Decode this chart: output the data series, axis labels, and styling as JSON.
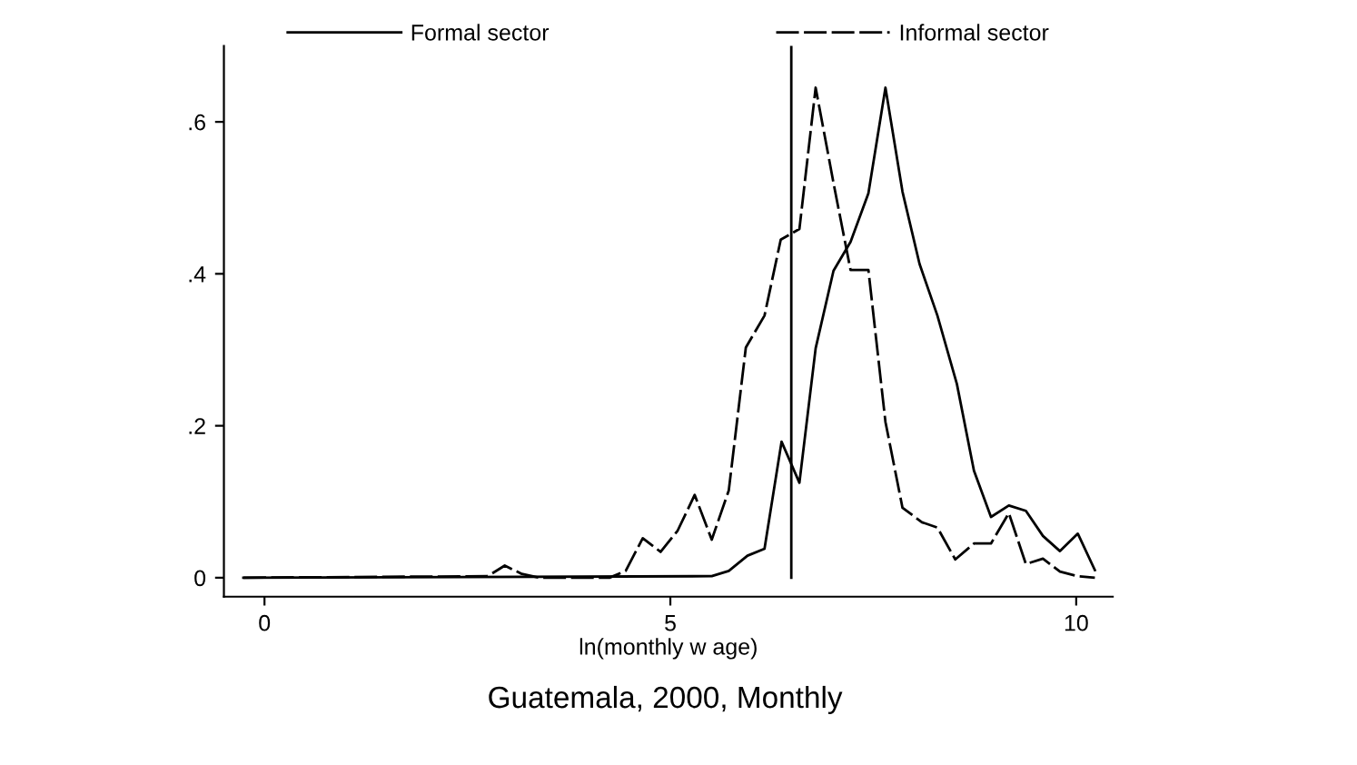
{
  "chart_data": {
    "type": "line",
    "title": "Guatemala, 2000, Monthly",
    "xlabel": "ln(monthly w age)",
    "series": [
      {
        "name": "Formal sector",
        "color": "#000000",
        "line_style": "solid",
        "x": [
          -0.26,
          5.51,
          5.72,
          5.95,
          6.16,
          6.37,
          6.59,
          6.79,
          7.01,
          7.22,
          7.44,
          7.65,
          7.86,
          8.07,
          8.29,
          8.53,
          8.74,
          8.95,
          9.17,
          9.38,
          9.59,
          9.8,
          10.02,
          10.23
        ],
        "values": [
          0,
          0.002,
          0.009,
          0.029,
          0.038,
          0.179,
          0.125,
          0.302,
          0.404,
          0.442,
          0.506,
          0.645,
          0.508,
          0.413,
          0.345,
          0.255,
          0.141,
          0.08,
          0.095,
          0.088,
          0.055,
          0.035,
          0.058,
          0.01
        ]
      },
      {
        "name": "Informal sector",
        "color": "#000000",
        "line_style": "dashed",
        "x": [
          -0.26,
          2.75,
          2.96,
          3.17,
          3.38,
          4.25,
          4.45,
          4.66,
          4.88,
          5.09,
          5.3,
          5.51,
          5.72,
          5.93,
          6.16,
          6.36,
          6.59,
          6.79,
          7.02,
          7.22,
          7.44,
          7.65,
          7.86,
          8.1,
          8.29,
          8.51,
          8.74,
          8.95,
          9.17,
          9.38,
          9.59,
          9.8,
          10.02,
          10.23
        ],
        "values": [
          0,
          0.002,
          0.016,
          0.005,
          0,
          0,
          0.009,
          0.052,
          0.034,
          0.062,
          0.109,
          0.05,
          0.115,
          0.303,
          0.345,
          0.445,
          0.459,
          0.645,
          0.514,
          0.405,
          0.405,
          0.205,
          0.092,
          0.073,
          0.066,
          0.024,
          0.045,
          0.045,
          0.085,
          0.018,
          0.025,
          0.008,
          0.002,
          0
        ]
      }
    ],
    "ref_lines": [
      {
        "axis": "x",
        "value": 6.49,
        "color": "#000000"
      }
    ],
    "xlim": [
      -0.5,
      10.45
    ],
    "xticks": [
      0,
      5,
      10
    ],
    "ylim": [
      -0.025,
      0.7
    ],
    "yticks": [
      0,
      {
        "value": 0.2,
        "label": ".2"
      },
      {
        "value": 0.4,
        "label": ".4"
      },
      {
        "value": 0.6,
        "label": ".6"
      }
    ],
    "grid": false,
    "legend": "top",
    "marker": "none"
  }
}
